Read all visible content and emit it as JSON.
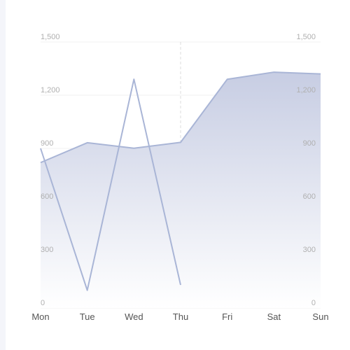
{
  "chart_data": {
    "type": "area",
    "categories": [
      "Mon",
      "Tue",
      "Wed",
      "Thu",
      "Fri",
      "Sat",
      "Sun"
    ],
    "series": [
      {
        "values": [
          820,
          932,
          901,
          934,
          1290,
          1330,
          1320
        ],
        "fill": "area"
      },
      {
        "values": [
          900,
          100,
          1290,
          130,
          null,
          null,
          null
        ],
        "fill": "none"
      }
    ],
    "y_left": {
      "ticks": [
        "0",
        "300",
        "600",
        "900",
        "1,200",
        "1,500"
      ],
      "ylim": [
        0,
        1500
      ]
    },
    "y_right": {
      "ticks": [
        "0",
        "300",
        "600",
        "900",
        "1,200",
        "1,500"
      ],
      "ylim": [
        0,
        1500
      ]
    },
    "grid": true,
    "highlight_category": "Thu",
    "colors": {
      "line": "#a9b5d6",
      "area_top": "#c7cde3",
      "area_bottom": "#ffffff",
      "grid": "#f0f0f0",
      "pointer": "#dddddd"
    }
  }
}
